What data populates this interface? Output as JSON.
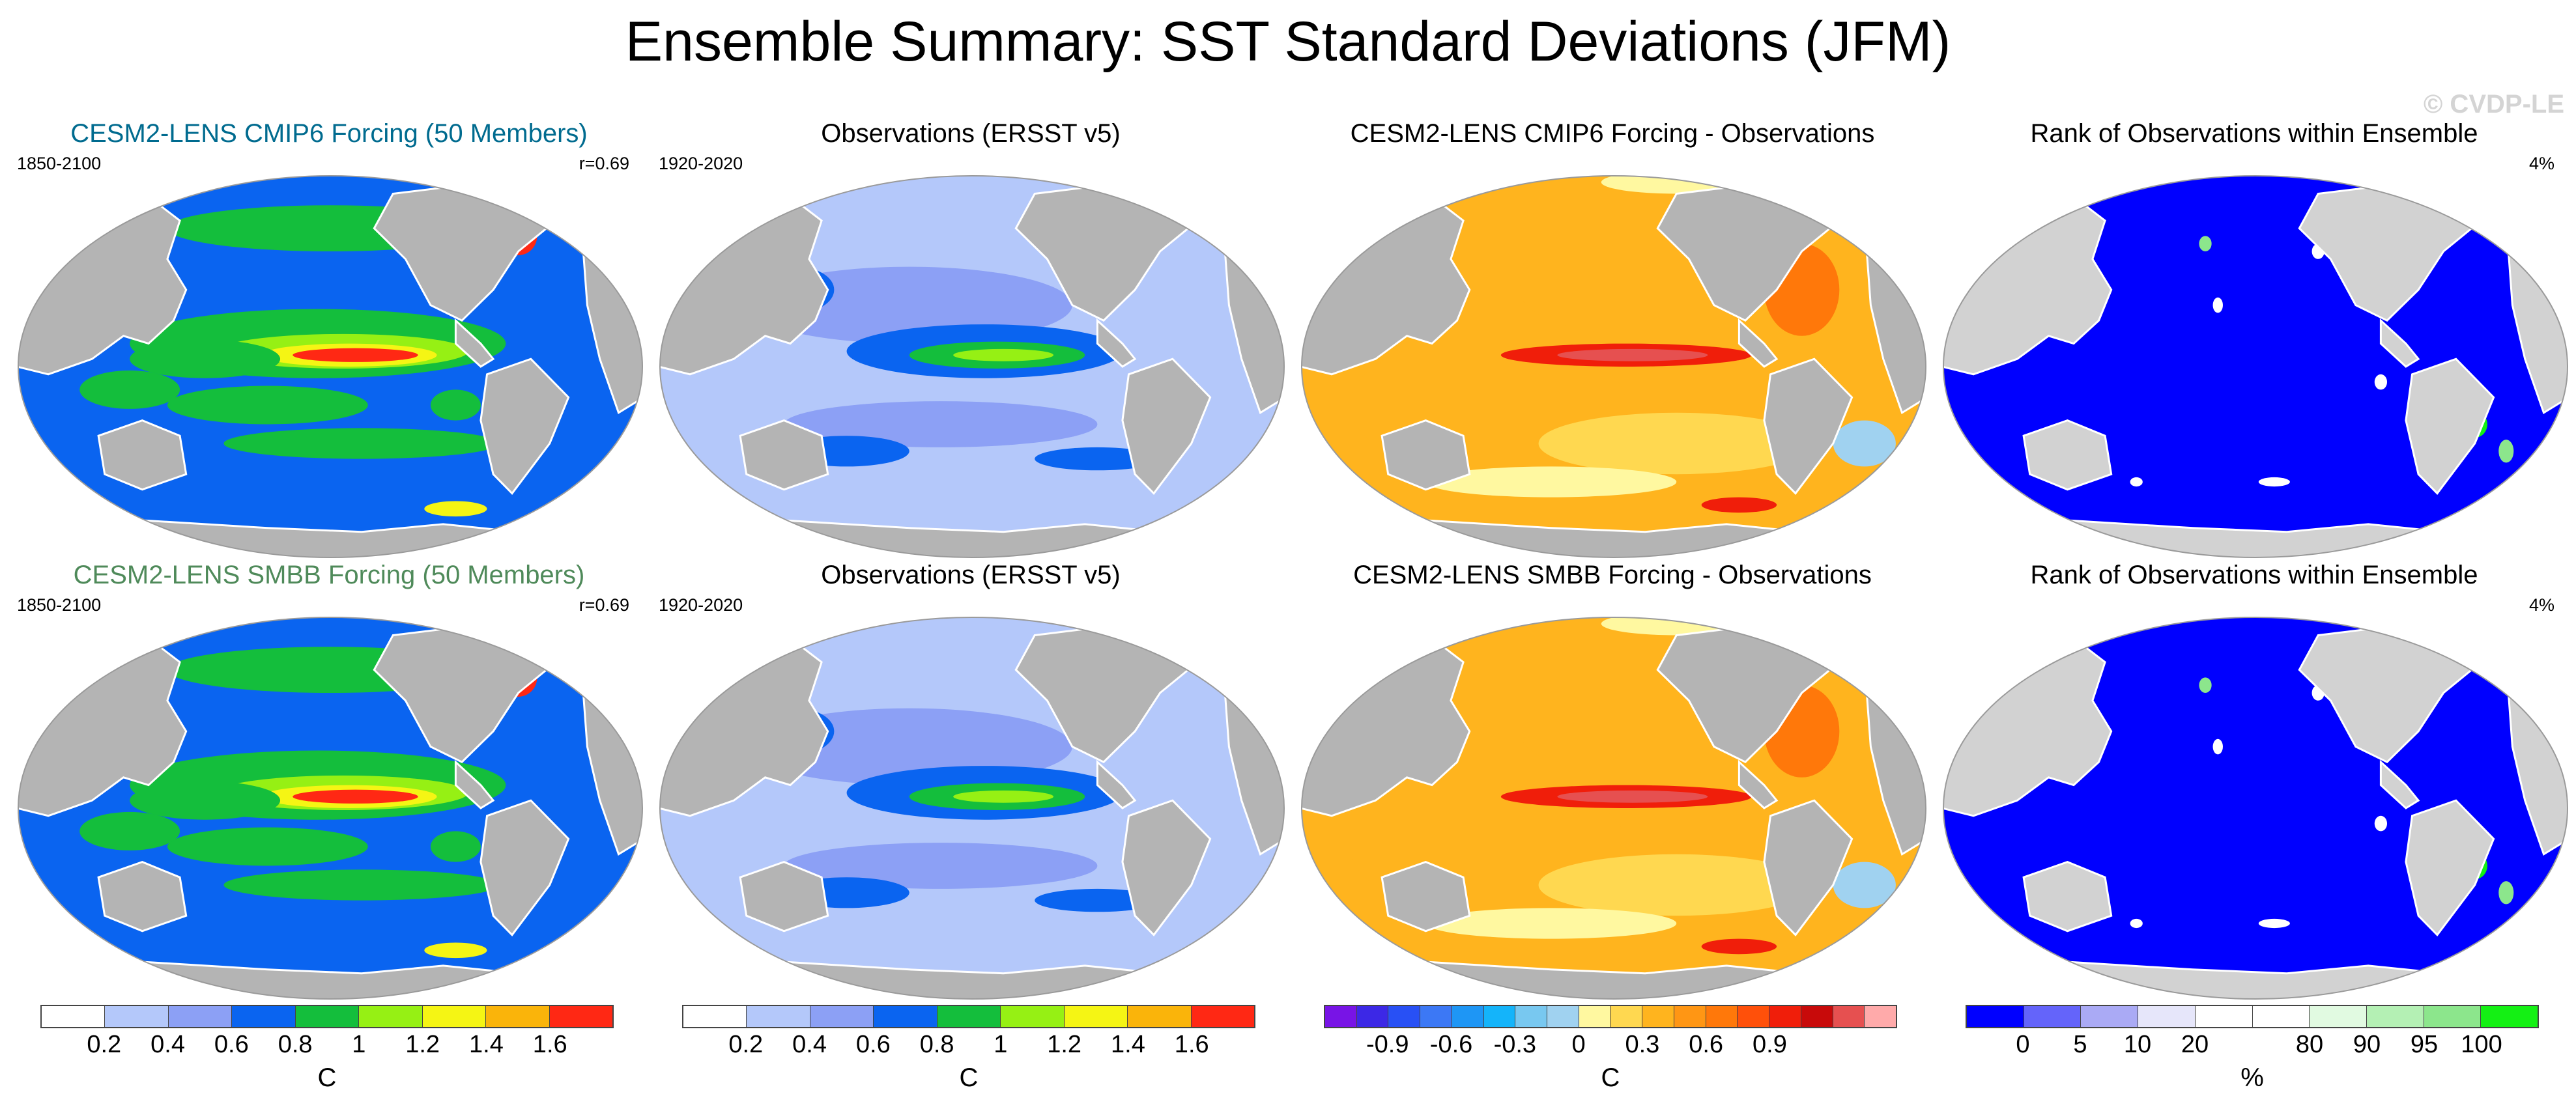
{
  "title": "Ensemble Summary: SST Standard Deviations (JFM)",
  "watermark": "© CVDP-LE",
  "colors": {
    "land": "#b4b4b4",
    "land_light": "#d2d2d2",
    "outline": "#9a9a9a",
    "title_cmip6": "#006b8f",
    "title_smbb": "#4f8a5a"
  },
  "panels": [
    {
      "title": "CESM2-LENS CMIP6 Forcing (50 Members)",
      "left": "1850-2100",
      "right": "r=0.69",
      "kind": "model"
    },
    {
      "title": "Observations (ERSST v5)",
      "left": "1920-2020",
      "right": "",
      "kind": "obs"
    },
    {
      "title": "CESM2-LENS CMIP6 Forcing - Observations",
      "left": "",
      "right": "",
      "kind": "diff"
    },
    {
      "title": "Rank of Observations within Ensemble",
      "left": "",
      "right": "4%",
      "kind": "rank"
    },
    {
      "title": "CESM2-LENS SMBB Forcing (50 Members)",
      "left": "1850-2100",
      "right": "r=0.69",
      "kind": "model"
    },
    {
      "title": "Observations (ERSST v5)",
      "left": "1920-2020",
      "right": "",
      "kind": "obs"
    },
    {
      "title": "CESM2-LENS SMBB Forcing - Observations",
      "left": "",
      "right": "",
      "kind": "diff"
    },
    {
      "title": "Rank of Observations within Ensemble",
      "left": "",
      "right": "4%",
      "kind": "rank"
    }
  ],
  "colorbars": [
    {
      "unit": "C",
      "colors": [
        "#ffffff",
        "#b4c8fa",
        "#8ca0f5",
        "#0a64f0",
        "#14be3c",
        "#96f014",
        "#f5f514",
        "#fab40a",
        "#ff2814"
      ],
      "ticks": [
        "0.2",
        "0.4",
        "0.6",
        "0.8",
        "1",
        "1.2",
        "1.4",
        "1.6"
      ]
    },
    {
      "unit": "C",
      "colors": [
        "#ffffff",
        "#b4c8fa",
        "#8ca0f5",
        "#0a64f0",
        "#14be3c",
        "#96f014",
        "#f5f514",
        "#fab40a",
        "#ff2814"
      ],
      "ticks": [
        "0.2",
        "0.4",
        "0.6",
        "0.8",
        "1",
        "1.2",
        "1.4",
        "1.6"
      ]
    },
    {
      "unit": "C",
      "colors": [
        "#7814e6",
        "#3c28e6",
        "#2850f5",
        "#3c78f5",
        "#1e96f5",
        "#14b4fa",
        "#78c8f0",
        "#a0d2f0",
        "#fff8a0",
        "#ffd850",
        "#ffb41e",
        "#ff9614",
        "#ff780a",
        "#ff500a",
        "#f01e0a",
        "#c80a0a",
        "#e65050",
        "#ffaaaa"
      ],
      "ticks": [
        "-0.9",
        "-0.6",
        "-0.3",
        "0",
        "0.3",
        "0.6",
        "0.9"
      ],
      "tick_pos": [
        2,
        4,
        6,
        8,
        10,
        12,
        14
      ]
    },
    {
      "unit": "%",
      "colors": [
        "#0000ff",
        "#6464fa",
        "#aaaaf5",
        "#e6e6fa",
        "#ffffff",
        "#ffffff",
        "#e1fae1",
        "#b4f0b4",
        "#8ce68c",
        "#14f014"
      ],
      "ticks": [
        "0",
        "5",
        "10",
        "20",
        "80",
        "90",
        "95",
        "100"
      ],
      "tick_pos": [
        1,
        2,
        3,
        4,
        6,
        7,
        8,
        9
      ]
    }
  ]
}
